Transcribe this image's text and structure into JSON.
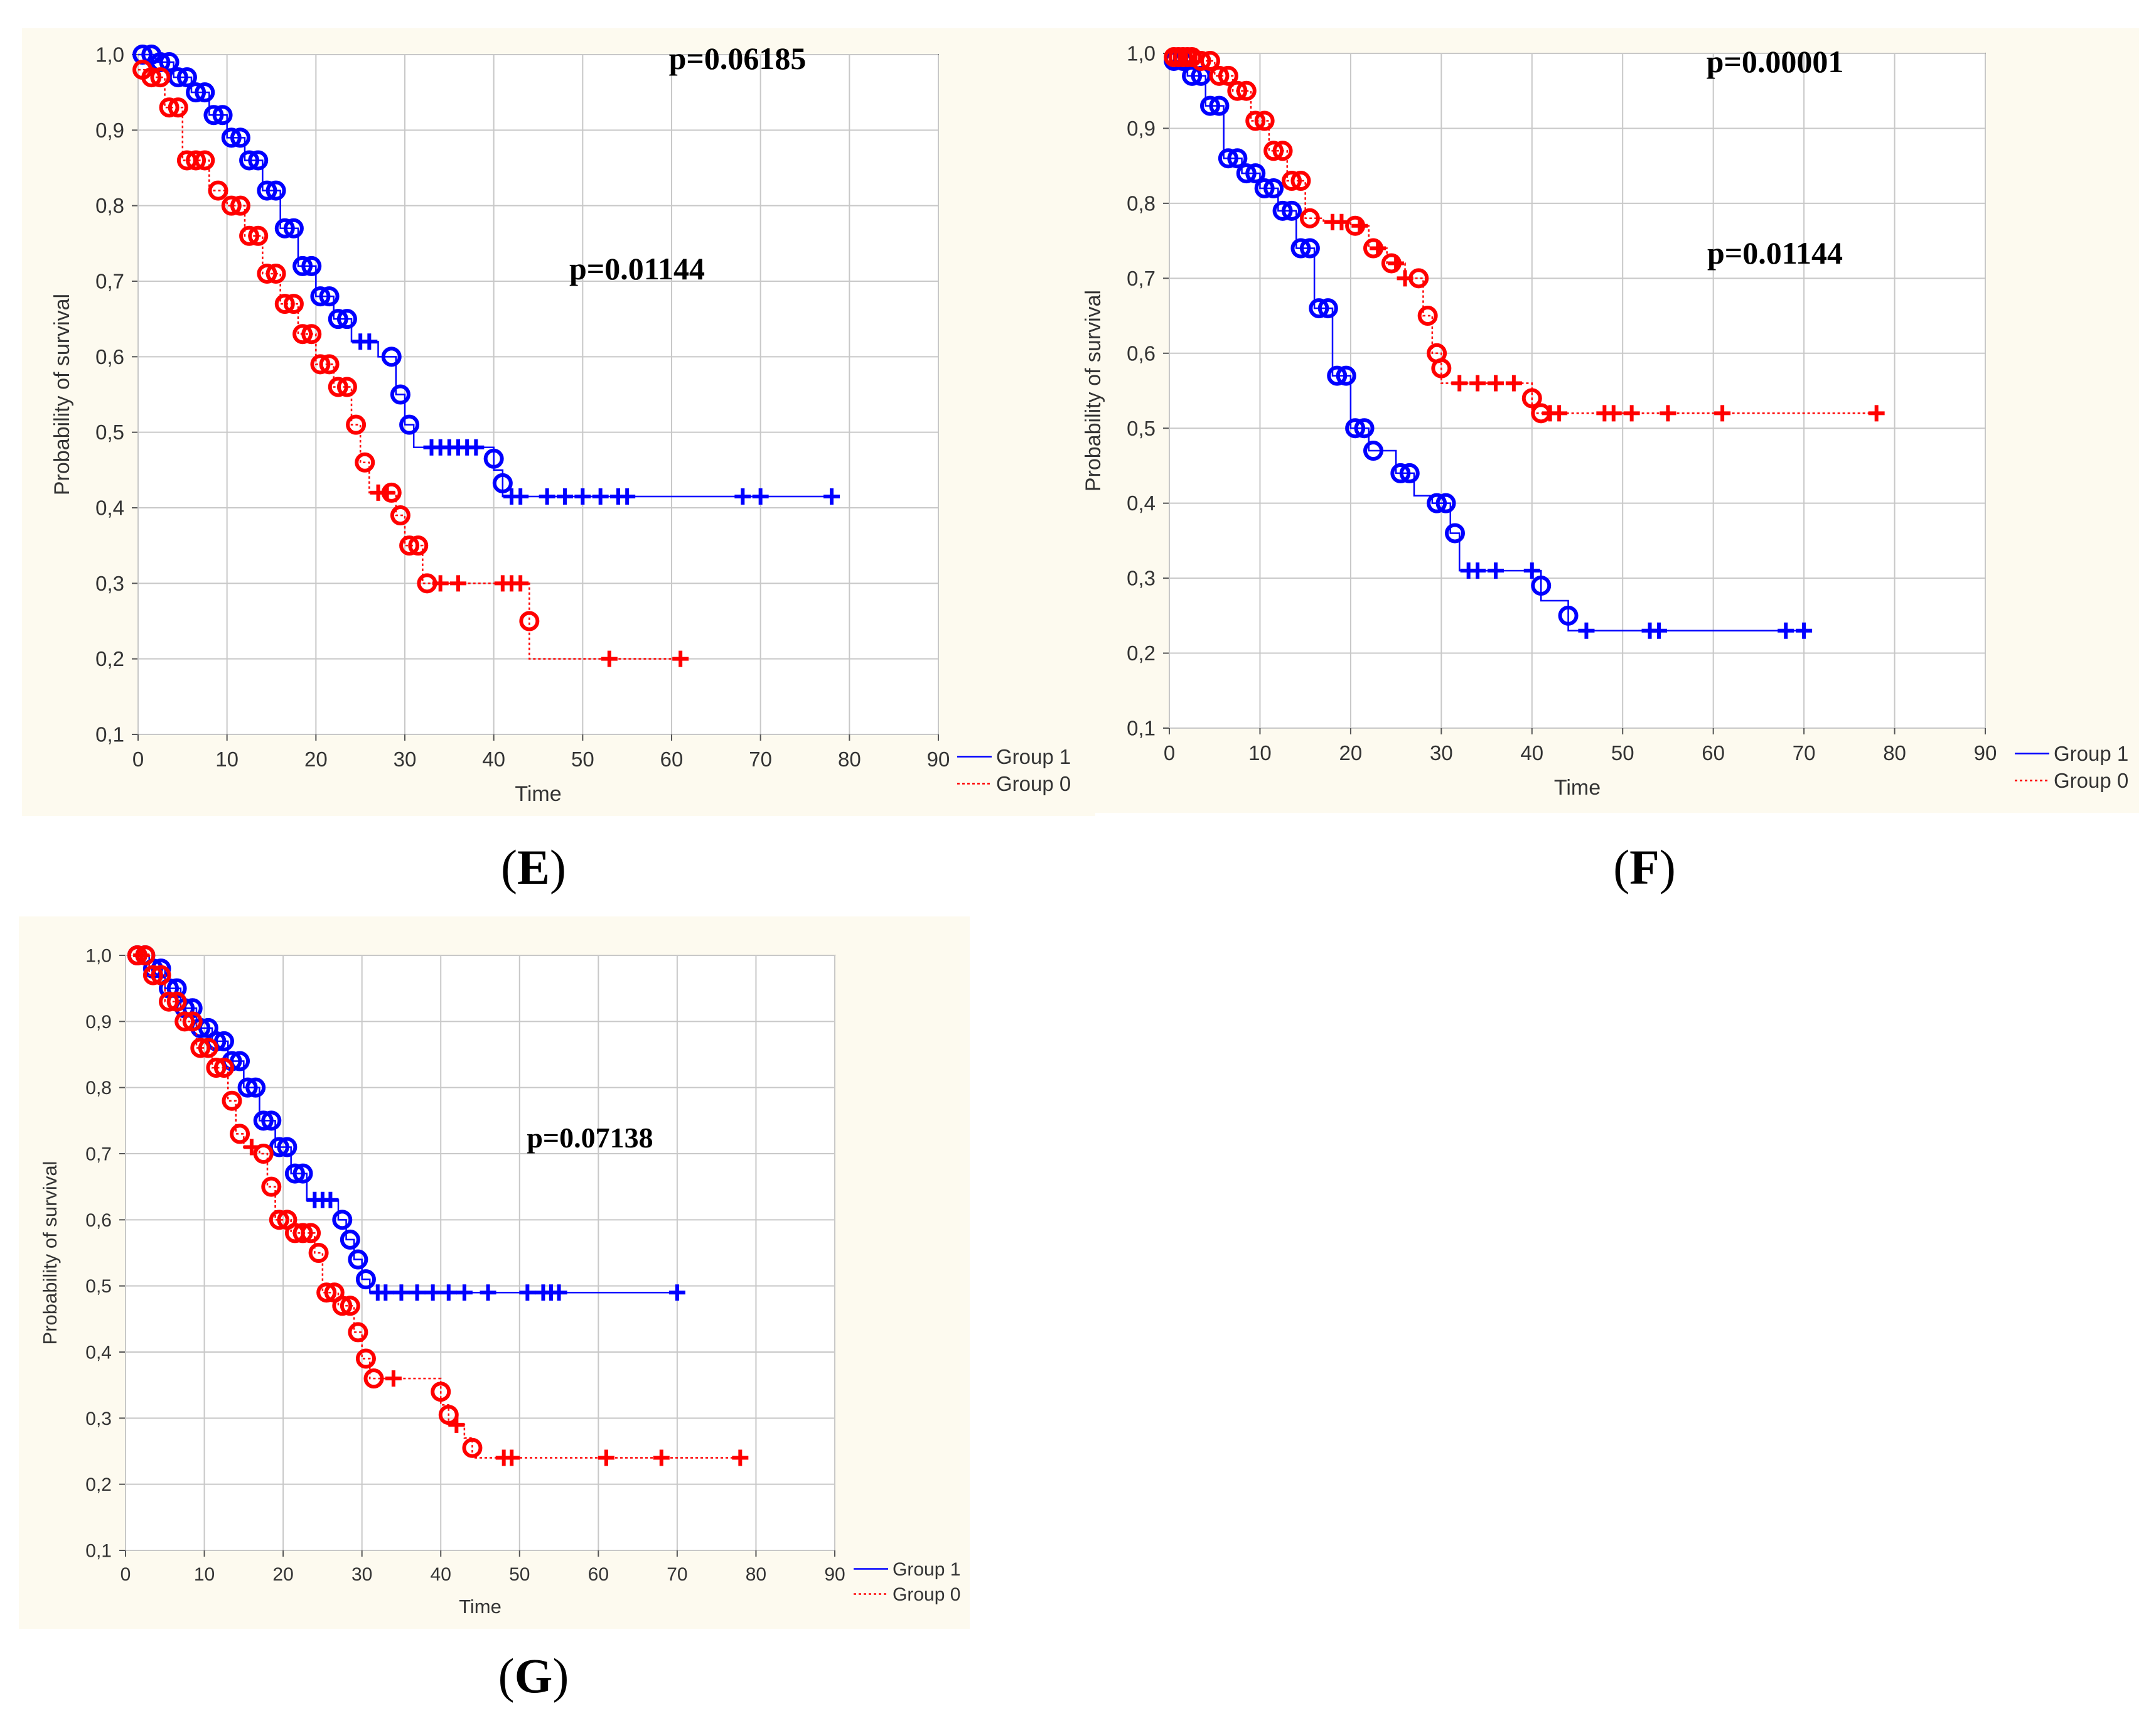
{
  "colors": {
    "group1": "#0000ff",
    "group0": "#ff0000",
    "panel_bg": "#fdfaef",
    "grid": "#c8c8c8",
    "axis": "#555555"
  },
  "chart_data": [
    {
      "id": "E",
      "type": "line",
      "label": "E",
      "xlabel": "Time",
      "ylabel": "Probability of survival",
      "xlim": [
        0,
        90
      ],
      "ylim": [
        0.1,
        1.0
      ],
      "xticks": [
        "0",
        "10",
        "20",
        "30",
        "40",
        "50",
        "60",
        "70",
        "80",
        "90"
      ],
      "yticks": [
        "0,1",
        "0,2",
        "0,3",
        "0,4",
        "0,5",
        "0,6",
        "0,7",
        "0,8",
        "0,9",
        "1,0"
      ],
      "annotations": [
        "p=0.06185",
        "p=0.01144"
      ],
      "legend": [
        "Group 1",
        "Group 0"
      ],
      "series": [
        {
          "name": "Group 1",
          "color": "#0000ff",
          "style": "solid",
          "steps": [
            [
              0,
              1.0
            ],
            [
              2,
              0.99
            ],
            [
              4,
              0.97
            ],
            [
              6,
              0.95
            ],
            [
              8,
              0.92
            ],
            [
              10,
              0.89
            ],
            [
              12,
              0.86
            ],
            [
              14,
              0.82
            ],
            [
              16,
              0.77
            ],
            [
              18,
              0.72
            ],
            [
              20,
              0.68
            ],
            [
              22,
              0.65
            ],
            [
              24,
              0.62
            ],
            [
              27,
              0.6
            ],
            [
              29,
              0.55
            ],
            [
              30,
              0.51
            ],
            [
              31,
              0.48
            ],
            [
              40,
              0.45
            ],
            [
              41,
              0.415
            ],
            [
              78,
              0.415
            ]
          ],
          "events": [
            0.5,
            1.5,
            2.5,
            3.5,
            4.5,
            5.5,
            6.5,
            7.5,
            8.5,
            9.5,
            10.5,
            11.5,
            12.5,
            13.5,
            14.5,
            15.5,
            16.5,
            17.5,
            18.5,
            19.5,
            20.5,
            21.5,
            22.5,
            23.5,
            28.5,
            29.5,
            30.5,
            40,
            41
          ],
          "censored": [
            25,
            26,
            33,
            34,
            35,
            36,
            37,
            38,
            42,
            43,
            46,
            48,
            50,
            52,
            54,
            55,
            68,
            70,
            78
          ]
        },
        {
          "name": "Group 0",
          "color": "#ff0000",
          "style": "dotted",
          "steps": [
            [
              0,
              0.98
            ],
            [
              1,
              0.97
            ],
            [
              3,
              0.93
            ],
            [
              5,
              0.86
            ],
            [
              8,
              0.82
            ],
            [
              10,
              0.8
            ],
            [
              12,
              0.76
            ],
            [
              14,
              0.71
            ],
            [
              16,
              0.67
            ],
            [
              18,
              0.63
            ],
            [
              20,
              0.59
            ],
            [
              22,
              0.56
            ],
            [
              24,
              0.51
            ],
            [
              25,
              0.46
            ],
            [
              26,
              0.42
            ],
            [
              29,
              0.39
            ],
            [
              30,
              0.35
            ],
            [
              32,
              0.3
            ],
            [
              44,
              0.2
            ],
            [
              61,
              0.2
            ]
          ],
          "events": [
            0.5,
            1.5,
            2.5,
            3.5,
            4.5,
            5.5,
            6.5,
            7.5,
            9,
            10.5,
            11.5,
            12.5,
            13.5,
            14.5,
            15.5,
            16.5,
            17.5,
            18.5,
            19.5,
            20.5,
            21.5,
            22.5,
            23.5,
            24.5,
            25.5,
            28.5,
            29.5,
            30.5,
            31.5,
            32.5,
            44
          ],
          "censored": [
            27,
            28,
            34,
            36,
            41,
            42,
            43,
            53,
            61
          ]
        }
      ]
    },
    {
      "id": "F",
      "type": "line",
      "label": "F",
      "xlabel": "Time",
      "ylabel": "Probability of survival",
      "xlim": [
        0,
        90
      ],
      "ylim": [
        0.1,
        1.0
      ],
      "xticks": [
        "0",
        "10",
        "20",
        "30",
        "40",
        "50",
        "60",
        "70",
        "80",
        "90"
      ],
      "yticks": [
        "0,1",
        "0,2",
        "0,3",
        "0,4",
        "0,5",
        "0,6",
        "0,7",
        "0,8",
        "0,9",
        "1,0"
      ],
      "annotations": [
        "p=0.00001",
        "p=0.01144"
      ],
      "legend": [
        "Group 1",
        "Group 0"
      ],
      "series": [
        {
          "name": "Group 1",
          "color": "#0000ff",
          "style": "solid",
          "steps": [
            [
              0,
              0.99
            ],
            [
              2,
              0.97
            ],
            [
              4,
              0.93
            ],
            [
              6,
              0.86
            ],
            [
              8,
              0.84
            ],
            [
              10,
              0.82
            ],
            [
              12,
              0.79
            ],
            [
              14,
              0.74
            ],
            [
              16,
              0.66
            ],
            [
              18,
              0.57
            ],
            [
              20,
              0.5
            ],
            [
              22,
              0.47
            ],
            [
              25,
              0.44
            ],
            [
              27,
              0.41
            ],
            [
              29,
              0.4
            ],
            [
              31,
              0.36
            ],
            [
              32,
              0.31
            ],
            [
              40,
              0.31
            ],
            [
              41,
              0.27
            ],
            [
              44,
              0.23
            ],
            [
              70,
              0.23
            ]
          ],
          "events": [
            0.5,
            1.5,
            2.5,
            3.5,
            4.5,
            5.5,
            6.5,
            7.5,
            8.5,
            9.5,
            10.5,
            11.5,
            12.5,
            13.5,
            14.5,
            15.5,
            16.5,
            17.5,
            18.5,
            19.5,
            20.5,
            21.5,
            22.5,
            25.5,
            26.5,
            29.5,
            30.5,
            31.5,
            41,
            44
          ],
          "censored": [
            33,
            34,
            36,
            40,
            46,
            53,
            54,
            68,
            70
          ]
        },
        {
          "name": "Group 0",
          "color": "#ff0000",
          "style": "dotted",
          "steps": [
            [
              0,
              0.995
            ],
            [
              3,
              0.99
            ],
            [
              5,
              0.97
            ],
            [
              7,
              0.95
            ],
            [
              9,
              0.91
            ],
            [
              11,
              0.87
            ],
            [
              13,
              0.83
            ],
            [
              15,
              0.78
            ],
            [
              17,
              0.775
            ],
            [
              20,
              0.77
            ],
            [
              22,
              0.74
            ],
            [
              24,
              0.72
            ],
            [
              26,
              0.7
            ],
            [
              28,
              0.65
            ],
            [
              29,
              0.6
            ],
            [
              30,
              0.56
            ],
            [
              40,
              0.52
            ],
            [
              78,
              0.52
            ]
          ],
          "events": [
            0.5,
            1,
            1.5,
            2,
            2.5,
            3.5,
            4.5,
            5.5,
            6.5,
            7.5,
            8.5,
            9.5,
            10.5,
            11.5,
            12.5,
            13.5,
            14.5,
            15.5,
            20.5,
            22.5,
            24.5,
            27.5,
            28.5,
            29.5,
            30,
            40,
            41
          ],
          "censored": [
            18,
            19,
            21,
            23,
            25,
            26,
            32,
            34,
            36,
            38,
            42,
            43,
            48,
            49,
            51,
            55,
            61,
            78
          ]
        }
      ]
    },
    {
      "id": "G",
      "type": "line",
      "label": "G",
      "xlabel": "Time",
      "ylabel": "Probability of survival",
      "xlim": [
        0,
        90
      ],
      "ylim": [
        0.1,
        1.0
      ],
      "xticks": [
        "0",
        "10",
        "20",
        "30",
        "40",
        "50",
        "60",
        "70",
        "80",
        "90"
      ],
      "yticks": [
        "0,1",
        "0,2",
        "0,3",
        "0,4",
        "0,5",
        "0,6",
        "0,7",
        "0,8",
        "0,9",
        "1,0"
      ],
      "annotations": [
        "p=0.07138"
      ],
      "legend": [
        "Group 1",
        "Group 0"
      ],
      "series": [
        {
          "name": "Group 1",
          "color": "#0000ff",
          "style": "solid",
          "steps": [
            [
              1,
              1.0
            ],
            [
              3,
              0.98
            ],
            [
              5,
              0.95
            ],
            [
              7,
              0.92
            ],
            [
              9,
              0.89
            ],
            [
              11,
              0.87
            ],
            [
              13,
              0.84
            ],
            [
              15,
              0.8
            ],
            [
              17,
              0.75
            ],
            [
              19,
              0.71
            ],
            [
              21,
              0.67
            ],
            [
              23,
              0.63
            ],
            [
              27,
              0.6
            ],
            [
              28,
              0.57
            ],
            [
              29,
              0.54
            ],
            [
              30,
              0.51
            ],
            [
              31,
              0.49
            ],
            [
              70,
              0.49
            ]
          ],
          "events": [
            1.5,
            2.5,
            3.5,
            4.5,
            5.5,
            6.5,
            7.5,
            8.5,
            9.5,
            10.5,
            11.5,
            12.5,
            13.5,
            14.5,
            15.5,
            16.5,
            17.5,
            18.5,
            19.5,
            20.5,
            21.5,
            22.5,
            27.5,
            28.5,
            29.5,
            30.5
          ],
          "censored": [
            24,
            25,
            26,
            32,
            33,
            35,
            37,
            39,
            41,
            43,
            46,
            51,
            53,
            54,
            55,
            70
          ]
        },
        {
          "name": "Group 0",
          "color": "#ff0000",
          "style": "dotted",
          "steps": [
            [
              1,
              1.0
            ],
            [
              3,
              0.97
            ],
            [
              5,
              0.93
            ],
            [
              7,
              0.9
            ],
            [
              9,
              0.86
            ],
            [
              11,
              0.83
            ],
            [
              13,
              0.78
            ],
            [
              14,
              0.73
            ],
            [
              15,
              0.71
            ],
            [
              17,
              0.7
            ],
            [
              18,
              0.65
            ],
            [
              19,
              0.6
            ],
            [
              21,
              0.58
            ],
            [
              24,
              0.55
            ],
            [
              25,
              0.49
            ],
            [
              27,
              0.47
            ],
            [
              29,
              0.43
            ],
            [
              30,
              0.39
            ],
            [
              31,
              0.36
            ],
            [
              40,
              0.32
            ],
            [
              41,
              0.29
            ],
            [
              43,
              0.27
            ],
            [
              44,
              0.24
            ],
            [
              78,
              0.24
            ]
          ],
          "events": [
            1.5,
            2.5,
            3.5,
            4.5,
            5.5,
            6.5,
            7.5,
            8.5,
            9.5,
            10.5,
            11.5,
            12.5,
            13.5,
            14.5,
            17.5,
            18.5,
            19.5,
            20.5,
            21.5,
            22.5,
            23.5,
            24.5,
            25.5,
            26.5,
            27.5,
            28.5,
            29.5,
            30.5,
            31.5,
            40,
            41,
            44
          ],
          "censored": [
            2,
            16,
            34,
            42,
            48,
            49,
            61,
            68,
            78
          ]
        }
      ]
    }
  ]
}
